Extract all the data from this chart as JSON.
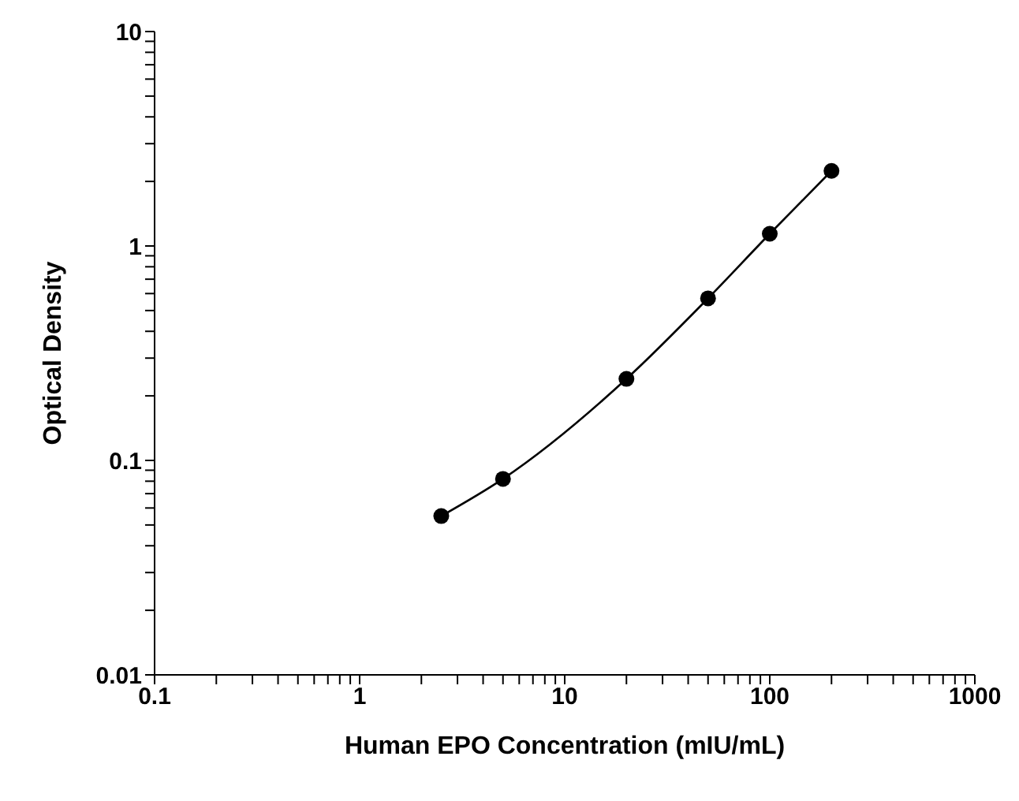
{
  "chart_data": {
    "type": "line",
    "xlabel": "Human EPO Concentration (mIU/mL)",
    "ylabel": "Optical Density",
    "log": "xy",
    "grid": false,
    "marker": "circle",
    "line_style": "solid",
    "x": [
      2.5,
      5,
      20,
      50,
      100,
      200
    ],
    "series": [
      {
        "color": "#000000",
        "values": [
          0.055,
          0.082,
          0.24,
          0.57,
          1.14,
          2.24
        ]
      }
    ],
    "xlim": [
      0.1,
      1000
    ],
    "xticks": [
      0.1,
      {
        "value": 0.2,
        "label": null
      },
      {
        "value": 0.3,
        "label": null
      },
      {
        "value": 0.4,
        "label": null
      },
      {
        "value": 0.5,
        "label": null
      },
      {
        "value": 0.6,
        "label": null
      },
      {
        "value": 0.7,
        "label": null
      },
      {
        "value": 0.8,
        "label": null
      },
      {
        "value": 0.9,
        "label": null
      },
      1,
      {
        "value": 2,
        "label": null
      },
      {
        "value": 3,
        "label": null
      },
      {
        "value": 4,
        "label": null
      },
      {
        "value": 5,
        "label": null
      },
      {
        "value": 6,
        "label": null
      },
      {
        "value": 7,
        "label": null
      },
      {
        "value": 8,
        "label": null
      },
      {
        "value": 9,
        "label": null
      },
      10,
      {
        "value": 20,
        "label": null
      },
      {
        "value": 30,
        "label": null
      },
      {
        "value": 40,
        "label": null
      },
      {
        "value": 50,
        "label": null
      },
      {
        "value": 60,
        "label": null
      },
      {
        "value": 70,
        "label": null
      },
      {
        "value": 80,
        "label": null
      },
      {
        "value": 90,
        "label": null
      },
      100,
      {
        "value": 200,
        "label": null
      },
      {
        "value": 300,
        "label": null
      },
      {
        "value": 400,
        "label": null
      },
      {
        "value": 500,
        "label": null
      },
      {
        "value": 600,
        "label": null
      },
      {
        "value": 700,
        "label": null
      },
      {
        "value": 800,
        "label": null
      },
      {
        "value": 900,
        "label": null
      },
      1000
    ],
    "ylim": [
      0.01,
      10
    ],
    "yticks": [
      0.01,
      {
        "value": 0.02,
        "label": null
      },
      {
        "value": 0.03,
        "label": null
      },
      {
        "value": 0.04,
        "label": null
      },
      {
        "value": 0.05,
        "label": null
      },
      {
        "value": 0.06,
        "label": null
      },
      {
        "value": 0.07,
        "label": null
      },
      {
        "value": 0.08,
        "label": null
      },
      {
        "value": 0.09,
        "label": null
      },
      0.1,
      {
        "value": 0.2,
        "label": null
      },
      {
        "value": 0.3,
        "label": null
      },
      {
        "value": 0.4,
        "label": null
      },
      {
        "value": 0.5,
        "label": null
      },
      {
        "value": 0.6,
        "label": null
      },
      {
        "value": 0.7,
        "label": null
      },
      {
        "value": 0.8,
        "label": null
      },
      {
        "value": 0.9,
        "label": null
      },
      1,
      {
        "value": 2,
        "label": null
      },
      {
        "value": 3,
        "label": null
      },
      {
        "value": 4,
        "label": null
      },
      {
        "value": 5,
        "label": null
      },
      {
        "value": 6,
        "label": null
      },
      {
        "value": 7,
        "label": null
      },
      {
        "value": 8,
        "label": null
      },
      {
        "value": 9,
        "label": null
      },
      10
    ]
  }
}
